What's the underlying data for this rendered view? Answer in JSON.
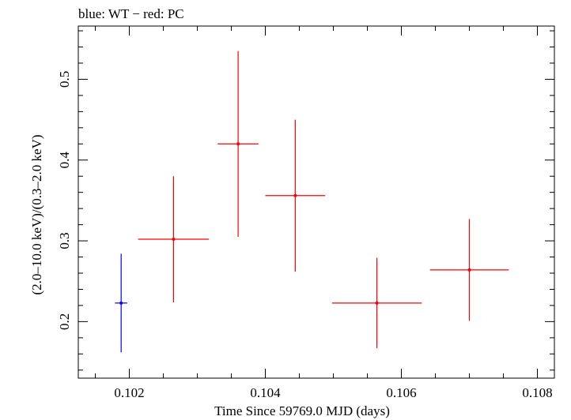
{
  "chart_data": {
    "type": "scatter",
    "title": "blue: WT − red: PC",
    "xlabel": "Time Since 59769.0 MJD (days)",
    "ylabel": "(2.0–10.0 keV)/(0.3–2.0 keV)",
    "xlim": [
      0.10125,
      0.10825
    ],
    "ylim": [
      0.13,
      0.5659
    ],
    "x_ticks": [
      {
        "value": 0.102,
        "label": "0.102"
      },
      {
        "value": 0.104,
        "label": "0.104"
      },
      {
        "value": 0.106,
        "label": "0.106"
      },
      {
        "value": 0.108,
        "label": "0.108"
      }
    ],
    "y_ticks": [
      {
        "value": 0.2,
        "label": "0.2"
      },
      {
        "value": 0.3,
        "label": "0.3"
      },
      {
        "value": 0.4,
        "label": "0.4"
      },
      {
        "value": 0.5,
        "label": "0.5"
      }
    ],
    "grid": false,
    "series": [
      {
        "name": "WT",
        "color": "#0000ff",
        "points": [
          {
            "x": 0.10188,
            "xerr": 9e-05,
            "y": 0.223,
            "yerr": 0.061
          }
        ]
      },
      {
        "name": "PC",
        "color": "#ff0000",
        "points": [
          {
            "x": 0.10265,
            "xerr": 0.00052,
            "y": 0.302,
            "yerr": 0.078
          },
          {
            "x": 0.1036,
            "xerr": 0.0003,
            "y": 0.42,
            "yerr": 0.115
          },
          {
            "x": 0.10444,
            "xerr": 0.00044,
            "y": 0.356,
            "yerr": 0.094
          },
          {
            "x": 0.10564,
            "xerr": 0.00066,
            "y": 0.223,
            "yerr": 0.056
          },
          {
            "x": 0.107,
            "xerr": 0.00058,
            "y": 0.264,
            "yerr": 0.063
          }
        ]
      }
    ]
  }
}
